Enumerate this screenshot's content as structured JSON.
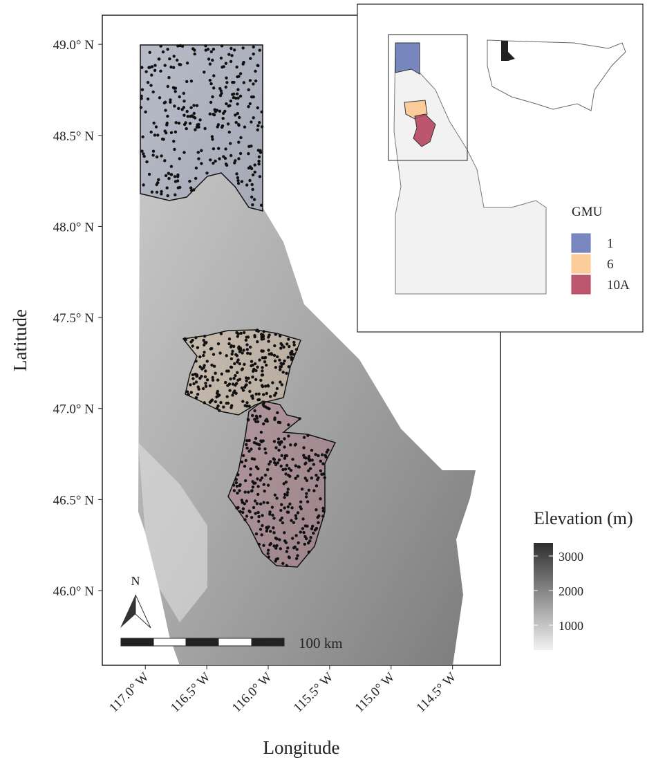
{
  "map": {
    "x_label": "Longitude",
    "y_label": "Latitude",
    "xlim": [
      -117.35,
      -114.11
    ],
    "ylim": [
      45.59,
      49.16
    ],
    "xticks": [
      {
        "value": -117.0,
        "label": "117.0° W"
      },
      {
        "value": -116.5,
        "label": "116.5° W"
      },
      {
        "value": -116.0,
        "label": "116.0° W"
      },
      {
        "value": -115.5,
        "label": "115.5° W"
      },
      {
        "value": -115.0,
        "label": "115.0° W"
      },
      {
        "value": -114.5,
        "label": "114.5° W"
      }
    ],
    "yticks": [
      {
        "value": 46.0,
        "label": "46.0° N"
      },
      {
        "value": 46.5,
        "label": "46.5° N"
      },
      {
        "value": 47.0,
        "label": "47.0° N"
      },
      {
        "value": 47.5,
        "label": "47.5° N"
      },
      {
        "value": 48.0,
        "label": "48.0° N"
      },
      {
        "value": 48.5,
        "label": "48.5° N"
      },
      {
        "value": 49.0,
        "label": "49.0° N"
      }
    ]
  },
  "north_arrow": "N",
  "scale_bar": "100 km",
  "gmu_legend": {
    "title": "GMU",
    "items": [
      {
        "name": "1",
        "color": "#6a7ab8"
      },
      {
        "name": "6",
        "color": "#fbc88f"
      },
      {
        "name": "10A",
        "color": "#b5455e"
      }
    ]
  },
  "elevation_legend": {
    "title": "Elevation (m)",
    "lim": [
      280,
      3380
    ],
    "ticks": [
      1000,
      2000,
      3000
    ]
  }
}
